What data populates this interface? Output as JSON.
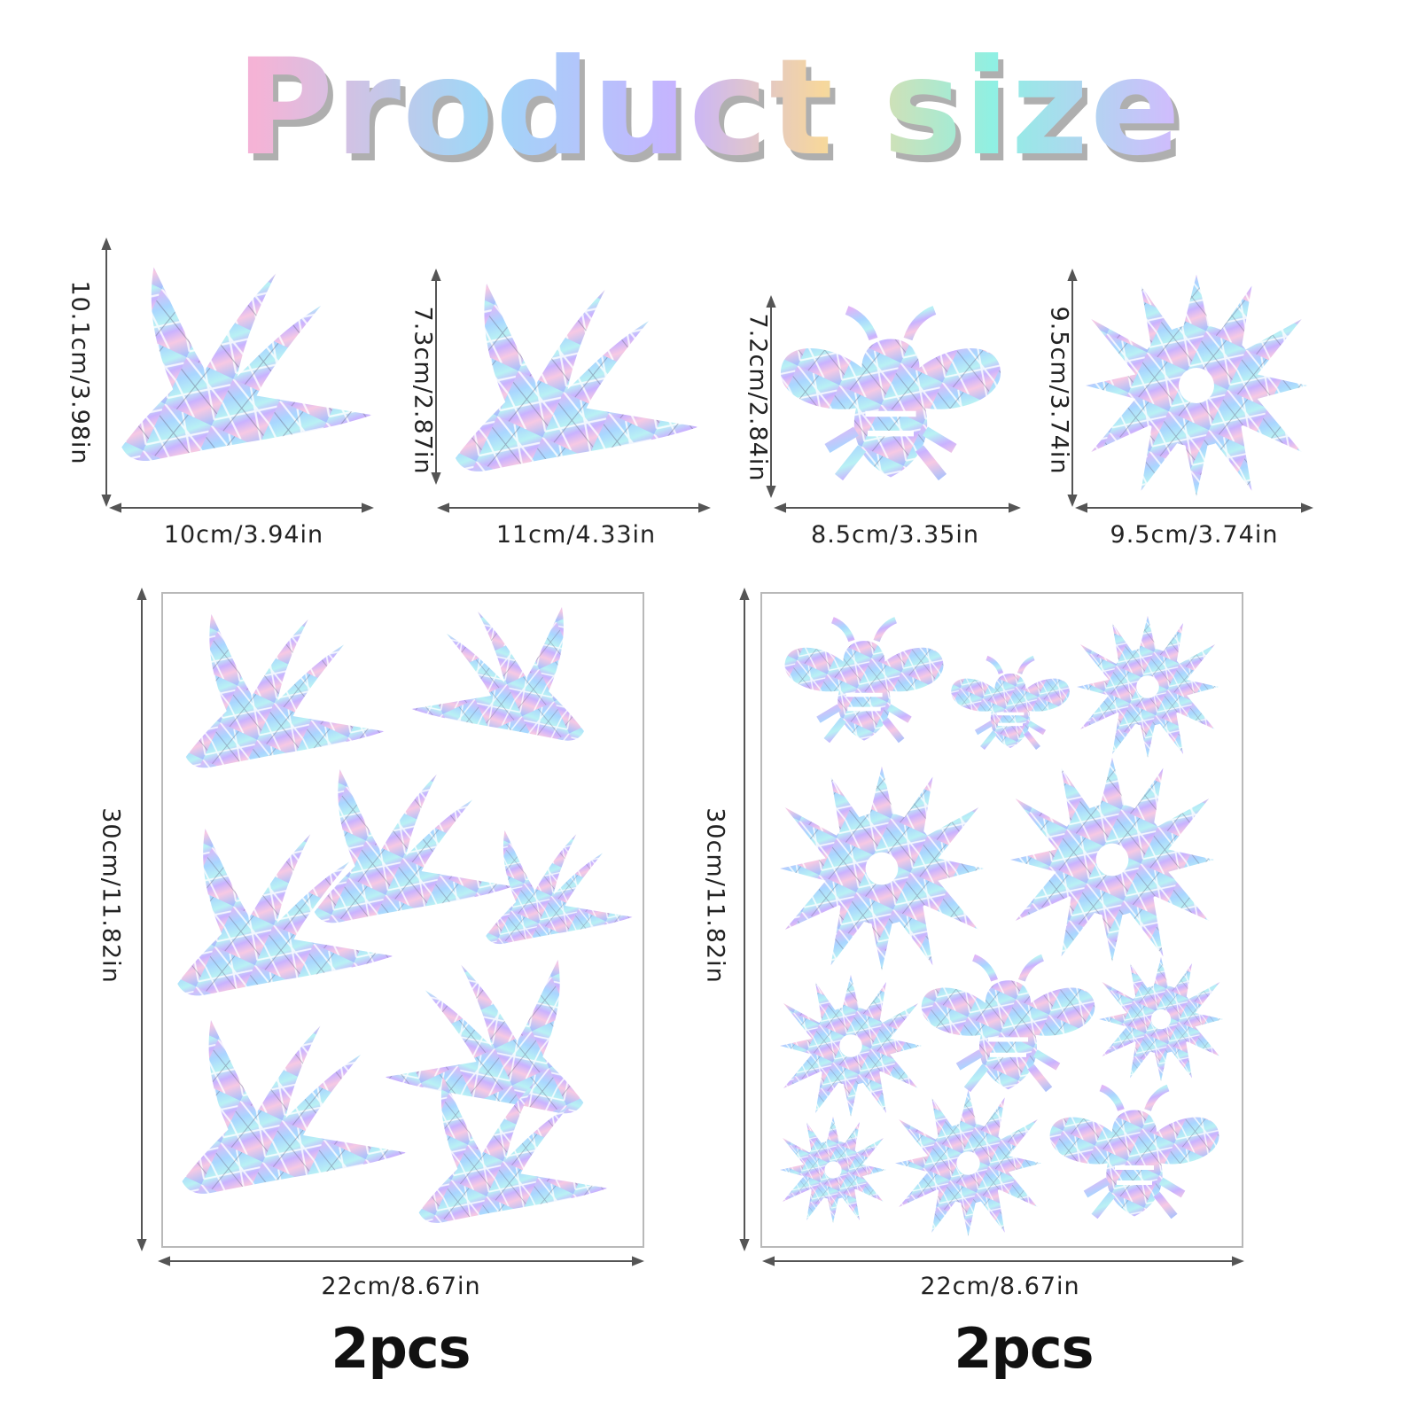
{
  "title": "Product size",
  "dimensions": {
    "swallow_1": {
      "height": "10.1cm/3.98in",
      "width": "10cm/3.94in"
    },
    "swallow_2": {
      "height": "7.3cm/2.87in",
      "width": "11cm/4.33in"
    },
    "bee": {
      "height": "7.2cm/2.84in",
      "width": "8.5cm/3.35in"
    },
    "flower": {
      "height": "9.5cm/3.74in",
      "width": "9.5cm/3.74in"
    },
    "sheet_left": {
      "height": "30cm/11.82in",
      "width": "22cm/8.67in",
      "quantity": "2pcs"
    },
    "sheet_right": {
      "height": "30cm/11.82in",
      "width": "22cm/8.67in",
      "quantity": "2pcs"
    }
  },
  "colors": {
    "holo_1": "#b6c8ff",
    "holo_2": "#e3b8f5",
    "holo_3": "#a8ecf3",
    "holo_4": "#f7c9e3",
    "arrow": "#555555"
  },
  "icons": [
    "swallow-sticker-icon",
    "bee-sticker-icon",
    "flower-sticker-icon"
  ]
}
